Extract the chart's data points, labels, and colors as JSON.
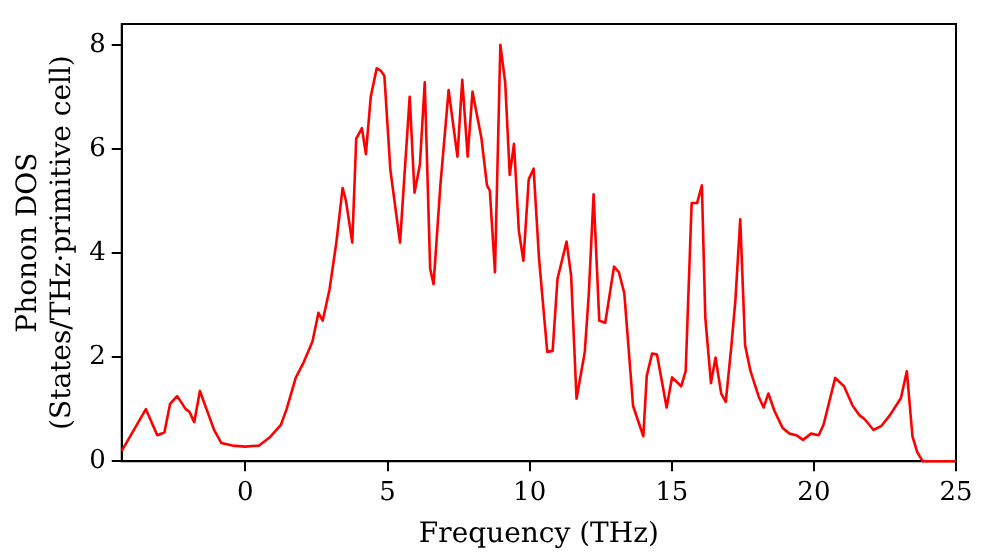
{
  "chart_data": {
    "type": "line",
    "xlabel": "Frequency (THz)",
    "ylabel": "Phonon DOS\n(States/THz·primitive cell)",
    "xlim": [
      -4.35,
      25
    ],
    "xticks": [
      0,
      5,
      10,
      15,
      20,
      25
    ],
    "ylim": [
      0,
      8.4
    ],
    "yticks": [
      0,
      2,
      4,
      6,
      8
    ],
    "grid": false,
    "legend": false,
    "marker": "none",
    "line_style": "solid",
    "series": [
      {
        "color": "#ff0000",
        "x": [
          -4.35,
          -3.5,
          -3.1,
          -2.85,
          -2.65,
          -2.4,
          -2.1,
          -1.97,
          -1.8,
          -1.6,
          -1.3,
          -1.1,
          -0.85,
          -0.45,
          0,
          0.48,
          0.84,
          1.25,
          1.45,
          1.77,
          2.05,
          2.36,
          2.57,
          2.72,
          2.96,
          3.2,
          3.42,
          3.54,
          3.76,
          3.9,
          4.1,
          4.24,
          4.41,
          4.62,
          4.77,
          4.89,
          5.1,
          5.44,
          5.78,
          5.95,
          6.14,
          6.31,
          6.5,
          6.62,
          6.86,
          7.15,
          7.46,
          7.63,
          7.82,
          7.99,
          8.3,
          8.5,
          8.6,
          8.78,
          8.97,
          9.14,
          9.3,
          9.45,
          9.62,
          9.78,
          9.97,
          10.14,
          10.33,
          10.62,
          10.81,
          10.98,
          11.3,
          11.46,
          11.65,
          11.94,
          12.08,
          12.25,
          12.45,
          12.66,
          12.97,
          13.14,
          13.33,
          13.64,
          14.0,
          14.12,
          14.31,
          14.48,
          14.82,
          15.01,
          15.33,
          15.49,
          15.7,
          15.89,
          16.06,
          16.18,
          16.38,
          16.54,
          16.74,
          16.9,
          17.1,
          17.24,
          17.41,
          17.58,
          17.77,
          18.06,
          18.23,
          18.4,
          18.61,
          18.9,
          19.14,
          19.38,
          19.62,
          19.9,
          20.17,
          20.34,
          20.75,
          21.06,
          21.37,
          21.61,
          21.78,
          22.1,
          22.38,
          22.67,
          23.06,
          23.27,
          23.47,
          23.64,
          23.83,
          25
        ],
        "values": [
          0.2,
          1.0,
          0.5,
          0.55,
          1.1,
          1.25,
          1.0,
          0.95,
          0.75,
          1.35,
          0.9,
          0.6,
          0.35,
          0.3,
          0.28,
          0.3,
          0.45,
          0.7,
          1.0,
          1.6,
          1.9,
          2.3,
          2.85,
          2.7,
          3.3,
          4.2,
          5.25,
          5.0,
          4.2,
          6.2,
          6.4,
          5.9,
          7.0,
          7.55,
          7.5,
          7.4,
          5.6,
          4.2,
          7.0,
          5.16,
          5.7,
          7.28,
          3.7,
          3.4,
          5.3,
          7.13,
          5.85,
          7.33,
          5.85,
          7.1,
          6.22,
          5.3,
          5.2,
          3.63,
          8.0,
          7.28,
          5.5,
          6.1,
          4.43,
          3.85,
          5.42,
          5.62,
          3.9,
          2.1,
          2.12,
          3.5,
          4.22,
          3.56,
          1.2,
          2.1,
          3.2,
          5.13,
          2.7,
          2.66,
          3.74,
          3.63,
          3.23,
          1.06,
          0.48,
          1.64,
          2.07,
          2.05,
          1.03,
          1.61,
          1.44,
          1.73,
          4.96,
          4.96,
          5.3,
          2.76,
          1.5,
          1.99,
          1.3,
          1.14,
          2.23,
          3.1,
          4.65,
          2.23,
          1.73,
          1.24,
          1.03,
          1.3,
          0.97,
          0.64,
          0.53,
          0.5,
          0.41,
          0.53,
          0.5,
          0.7,
          1.6,
          1.44,
          1.06,
          0.88,
          0.81,
          0.6,
          0.68,
          0.88,
          1.21,
          1.73,
          0.47,
          0.17,
          0,
          0
        ]
      }
    ]
  }
}
